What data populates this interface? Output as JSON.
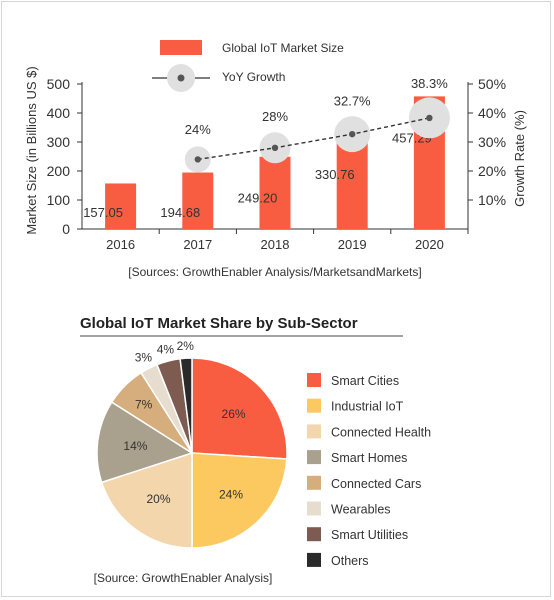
{
  "chart_data": [
    {
      "type": "bar",
      "categories": [
        "2016",
        "2017",
        "2018",
        "2019",
        "2020"
      ],
      "series": [
        {
          "name": "Global IoT Market Size",
          "type": "bar",
          "axis": "left",
          "values": [
            157.05,
            194.68,
            249.2,
            330.76,
            457.29
          ],
          "labels": [
            "157.05",
            "194.68",
            "249.20",
            "330.76",
            "457.29"
          ]
        },
        {
          "name": "YoY Growth",
          "type": "line",
          "axis": "right",
          "values": [
            null,
            24,
            28,
            32.7,
            38.3
          ],
          "labels": [
            "",
            "24%",
            "28%",
            "32.7%",
            "38.3%"
          ]
        }
      ],
      "ylabel": "Market Size (in Billions US $)",
      "ylabel_right": "Growth Rate (%)",
      "ylim": [
        0,
        500
      ],
      "y_ticks": [
        "0",
        "100",
        "200",
        "300",
        "400",
        "500"
      ],
      "ylim_right": [
        0,
        50
      ],
      "y_ticks_right": [
        "10%",
        "20%",
        "30%",
        "40%",
        "50%"
      ],
      "legend": "top-left",
      "grid": false,
      "source": "[Sources: GrowthEnabler Analysis/MarketsandMarkets]",
      "colors": {
        "bar": "#f95d41",
        "line": "#333333",
        "marker": "#555555",
        "halo": "#e0e0e0"
      }
    },
    {
      "type": "pie",
      "title": "Global IoT Market Share by Sub-Sector",
      "slices": [
        {
          "name": "Smart Cities",
          "value": 26,
          "label": "26%",
          "color": "#f95d41"
        },
        {
          "name": "Industrial IoT",
          "value": 24,
          "label": "24%",
          "color": "#fcc961"
        },
        {
          "name": "Connected Health",
          "value": 20,
          "label": "20%",
          "color": "#f3d6ac"
        },
        {
          "name": "Smart Homes",
          "value": 14,
          "label": "14%",
          "color": "#aaa08e"
        },
        {
          "name": "Connected Cars",
          "value": 7,
          "label": "7%",
          "color": "#d6ad7d"
        },
        {
          "name": "Wearables",
          "value": 3,
          "label": "3%",
          "color": "#e7ddcf"
        },
        {
          "name": "Smart Utilities",
          "value": 4,
          "label": "4%",
          "color": "#7d5b50"
        },
        {
          "name": "Others",
          "value": 2,
          "label": "2%",
          "color": "#2a2a2a"
        }
      ],
      "legend": "right",
      "source": "[Source: GrowthEnabler Analysis]"
    }
  ]
}
